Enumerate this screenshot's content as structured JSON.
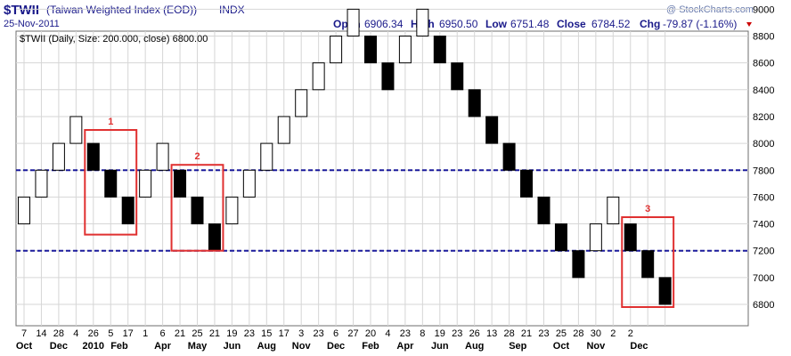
{
  "header": {
    "symbol": "$TWII",
    "name": "(Taiwan Weighted Index (EOD))",
    "exchange": "INDX",
    "date": "25-Nov-2011",
    "watermark": "@ StockCharts.com",
    "quote": {
      "open_label": "Open",
      "open": "6906.34",
      "high_label": "High",
      "high": "6950.50",
      "low_label": "Low",
      "low": "6751.48",
      "close_label": "Close",
      "close": "6784.52",
      "chg_label": "Chg",
      "chg": "-79.87 (-1.16%)"
    },
    "legend": "$TWII (Daily, Size: 200.000, close) 6800.00",
    "colors": {
      "up_box": "#ffffff",
      "down_box": "#000000",
      "ref_line": "#1a1a9c",
      "annot": "#e03030",
      "chg": "#cc0000"
    }
  },
  "chart_data": {
    "type": "renko",
    "box_size": 200,
    "ylim": [
      6700,
      9100
    ],
    "yticks": [
      6800,
      7000,
      7200,
      7400,
      7600,
      7800,
      8000,
      8200,
      8400,
      8600,
      8800,
      9000
    ],
    "grid": true,
    "bricks": [
      {
        "dir": "up",
        "low": 7400,
        "high": 7600
      },
      {
        "dir": "up",
        "low": 7600,
        "high": 7800
      },
      {
        "dir": "up",
        "low": 7800,
        "high": 8000
      },
      {
        "dir": "up",
        "low": 8000,
        "high": 8200
      },
      {
        "dir": "down",
        "low": 7800,
        "high": 8000
      },
      {
        "dir": "down",
        "low": 7600,
        "high": 7800
      },
      {
        "dir": "down",
        "low": 7400,
        "high": 7600
      },
      {
        "dir": "up",
        "low": 7600,
        "high": 7800
      },
      {
        "dir": "up",
        "low": 7800,
        "high": 8000
      },
      {
        "dir": "down",
        "low": 7600,
        "high": 7800
      },
      {
        "dir": "down",
        "low": 7400,
        "high": 7600
      },
      {
        "dir": "down",
        "low": 7200,
        "high": 7400
      },
      {
        "dir": "up",
        "low": 7400,
        "high": 7600
      },
      {
        "dir": "up",
        "low": 7600,
        "high": 7800
      },
      {
        "dir": "up",
        "low": 7800,
        "high": 8000
      },
      {
        "dir": "up",
        "low": 8000,
        "high": 8200
      },
      {
        "dir": "up",
        "low": 8200,
        "high": 8400
      },
      {
        "dir": "up",
        "low": 8400,
        "high": 8600
      },
      {
        "dir": "up",
        "low": 8600,
        "high": 8800
      },
      {
        "dir": "up",
        "low": 8800,
        "high": 9000
      },
      {
        "dir": "down",
        "low": 8600,
        "high": 8800
      },
      {
        "dir": "down",
        "low": 8400,
        "high": 8600
      },
      {
        "dir": "up",
        "low": 8600,
        "high": 8800
      },
      {
        "dir": "up",
        "low": 8800,
        "high": 9000
      },
      {
        "dir": "down",
        "low": 8600,
        "high": 8800
      },
      {
        "dir": "down",
        "low": 8400,
        "high": 8600
      },
      {
        "dir": "down",
        "low": 8200,
        "high": 8400
      },
      {
        "dir": "down",
        "low": 8000,
        "high": 8200
      },
      {
        "dir": "down",
        "low": 7800,
        "high": 8000
      },
      {
        "dir": "down",
        "low": 7600,
        "high": 7800
      },
      {
        "dir": "down",
        "low": 7400,
        "high": 7600
      },
      {
        "dir": "down",
        "low": 7200,
        "high": 7400
      },
      {
        "dir": "down",
        "low": 7000,
        "high": 7200
      },
      {
        "dir": "up",
        "low": 7200,
        "high": 7400
      },
      {
        "dir": "up",
        "low": 7400,
        "high": 7600
      },
      {
        "dir": "down",
        "low": 7200,
        "high": 7400
      },
      {
        "dir": "down",
        "low": 7000,
        "high": 7200
      },
      {
        "dir": "down",
        "low": 6800,
        "high": 7000
      }
    ],
    "day_labels": [
      "7",
      "14",
      "28",
      "4",
      "26",
      "5",
      "17",
      "1",
      "6",
      "21",
      "25",
      "21",
      "19",
      "23",
      "15",
      "17",
      "3",
      "23",
      "6",
      "27",
      "20",
      "4",
      "23",
      "8",
      "19",
      "23",
      "26",
      "13",
      "28",
      "21",
      "23",
      "25",
      "28",
      "30",
      "2",
      "2"
    ],
    "month_labels": [
      "Oct",
      "Dec",
      "2010",
      "Feb",
      "Apr",
      "May",
      "Jun",
      "Aug",
      "Nov",
      "Dec",
      "Feb",
      "Apr",
      "Jun",
      "Aug",
      "Sep",
      "Oct",
      "Nov",
      "Dec"
    ],
    "reference_lines": [
      {
        "value": 7800,
        "style": "dashed"
      },
      {
        "value": 7200,
        "style": "dashed"
      }
    ],
    "annotations": [
      {
        "label": "1",
        "brick_from": 4,
        "brick_to": 6,
        "low": 7320,
        "high": 8100,
        "color": "#e03030"
      },
      {
        "label": "2",
        "brick_from": 9,
        "brick_to": 11,
        "low": 7200,
        "high": 7840,
        "color": "#e03030"
      },
      {
        "label": "3",
        "brick_from": 35,
        "brick_to": 37,
        "low": 6780,
        "high": 7450,
        "color": "#e03030"
      }
    ]
  }
}
